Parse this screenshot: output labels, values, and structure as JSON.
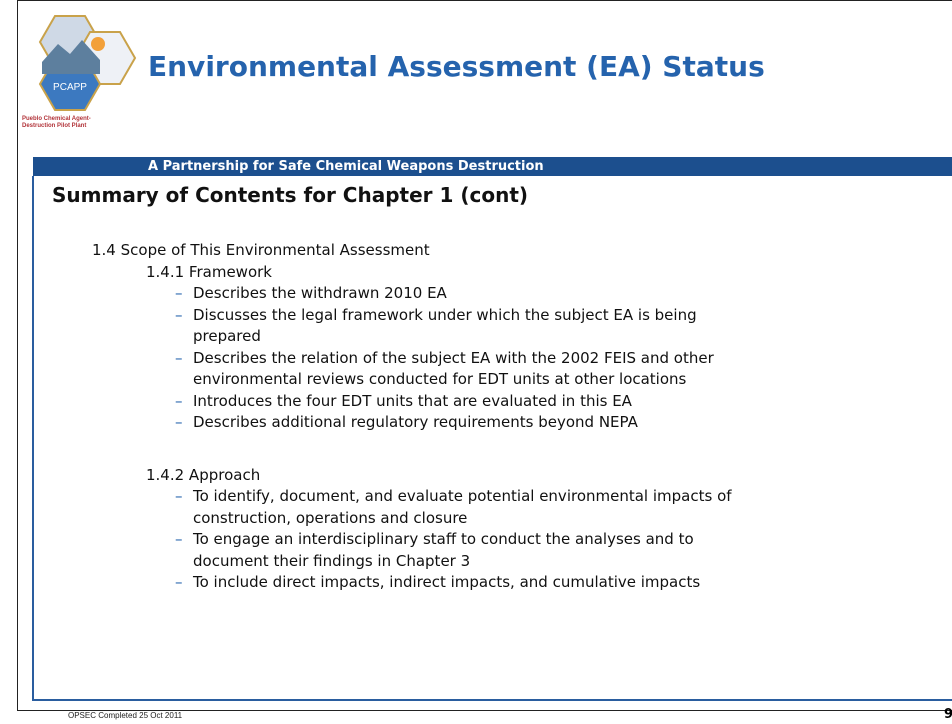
{
  "header": {
    "title": "Environmental Assessment (EA) Status",
    "tagline": "A Partnership for Safe Chemical Weapons Destruction",
    "logo": {
      "name": "PCAPP",
      "caption": [
        "Pueblo Chemical Agent-",
        "Destruction Pilot Plant"
      ]
    }
  },
  "heading": "Summary of Contents for Chapter 1 (cont)",
  "section": {
    "title": "1.4 Scope of This Environmental Assessment",
    "subsections": [
      {
        "title": "1.4.1 Framework",
        "items": [
          [
            "Describes the withdrawn 2010 EA"
          ],
          [
            "Discusses the legal framework under which the subject EA is being",
            "prepared"
          ],
          [
            "Describes the relation of the subject EA with the 2002 FEIS and other",
            "environmental reviews conducted for EDT units at other locations"
          ],
          [
            "Introduces the four EDT units that are evaluated in this EA"
          ],
          [
            "Describes additional regulatory requirements beyond NEPA"
          ]
        ]
      },
      {
        "title": "1.4.2 Approach",
        "items": [
          [
            "To identify, document, and evaluate potential environmental impacts of",
            "construction, operations and closure"
          ],
          [
            "To engage an interdisciplinary staff to conduct the analyses and to",
            "document their findings in Chapter 3"
          ],
          [
            "To include direct impacts, indirect impacts, and cumulative impacts"
          ]
        ]
      }
    ]
  },
  "footer": {
    "note": "OPSEC Completed 25 Oct 2011",
    "page": "9"
  }
}
